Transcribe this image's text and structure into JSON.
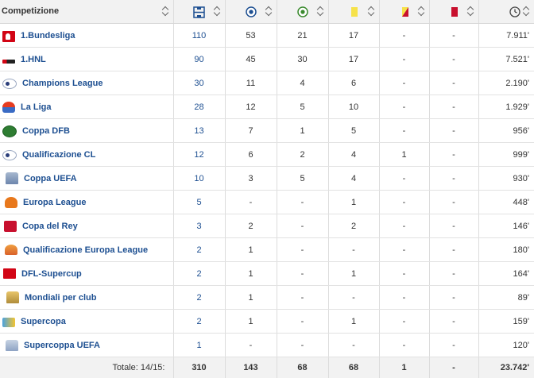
{
  "header": {
    "competition_label": "Competizione",
    "columns": [
      {
        "icon": "appearances-icon"
      },
      {
        "icon": "goals-icon"
      },
      {
        "icon": "assists-icon"
      },
      {
        "icon": "yellow-card-icon"
      },
      {
        "icon": "second-yellow-card-icon"
      },
      {
        "icon": "red-card-icon"
      },
      {
        "icon": "clock-icon"
      }
    ]
  },
  "rows": [
    {
      "logo": "bundesliga-logo",
      "name": "1.Bundesliga",
      "app": "110",
      "goals": "53",
      "assists": "21",
      "yellow": "17",
      "yellowred": "-",
      "red": "-",
      "minutes": "7.911'"
    },
    {
      "logo": "hnl-logo",
      "name": "1.HNL",
      "app": "90",
      "goals": "45",
      "assists": "30",
      "yellow": "17",
      "yellowred": "-",
      "red": "-",
      "minutes": "7.521'"
    },
    {
      "logo": "champions-league-logo",
      "name": "Champions League",
      "app": "30",
      "goals": "11",
      "assists": "4",
      "yellow": "6",
      "yellowred": "-",
      "red": "-",
      "minutes": "2.190'"
    },
    {
      "logo": "la-liga-logo",
      "name": "La Liga",
      "app": "28",
      "goals": "12",
      "assists": "5",
      "yellow": "10",
      "yellowred": "-",
      "red": "-",
      "minutes": "1.929'"
    },
    {
      "logo": "coppa-dfb-logo",
      "name": "Coppa DFB",
      "app": "13",
      "goals": "7",
      "assists": "1",
      "yellow": "5",
      "yellowred": "-",
      "red": "-",
      "minutes": "956'"
    },
    {
      "logo": "qualificazione-cl-logo",
      "name": "Qualificazione CL",
      "app": "12",
      "goals": "6",
      "assists": "2",
      "yellow": "4",
      "yellowred": "1",
      "red": "-",
      "minutes": "999'"
    },
    {
      "logo": "coppa-uefa-logo",
      "name": "Coppa UEFA",
      "app": "10",
      "goals": "3",
      "assists": "5",
      "yellow": "4",
      "yellowred": "-",
      "red": "-",
      "minutes": "930'"
    },
    {
      "logo": "europa-league-logo",
      "name": "Europa League",
      "app": "5",
      "goals": "-",
      "assists": "-",
      "yellow": "1",
      "yellowred": "-",
      "red": "-",
      "minutes": "448'"
    },
    {
      "logo": "copa-del-rey-logo",
      "name": "Copa del Rey",
      "app": "3",
      "goals": "2",
      "assists": "-",
      "yellow": "2",
      "yellowred": "-",
      "red": "-",
      "minutes": "146'"
    },
    {
      "logo": "qualificazione-europa-league-logo",
      "name": "Qualificazione Europa League",
      "app": "2",
      "goals": "1",
      "assists": "-",
      "yellow": "-",
      "yellowred": "-",
      "red": "-",
      "minutes": "180'"
    },
    {
      "logo": "dfl-supercup-logo",
      "name": "DFL-Supercup",
      "app": "2",
      "goals": "1",
      "assists": "-",
      "yellow": "1",
      "yellowred": "-",
      "red": "-",
      "minutes": "164'"
    },
    {
      "logo": "mondiali-per-club-logo",
      "name": "Mondiali per club",
      "app": "2",
      "goals": "1",
      "assists": "-",
      "yellow": "-",
      "yellowred": "-",
      "red": "-",
      "minutes": "89'"
    },
    {
      "logo": "supercopa-logo",
      "name": "Supercopa",
      "app": "2",
      "goals": "1",
      "assists": "-",
      "yellow": "1",
      "yellowred": "-",
      "red": "-",
      "minutes": "159'"
    },
    {
      "logo": "supercoppa-uefa-logo",
      "name": "Supercoppa UEFA",
      "app": "1",
      "goals": "-",
      "assists": "-",
      "yellow": "-",
      "yellowred": "-",
      "red": "-",
      "minutes": "120'"
    }
  ],
  "totals": {
    "label": "Totale: 14/15:",
    "app": "310",
    "goals": "143",
    "assists": "68",
    "yellow": "68",
    "yellowred": "1",
    "red": "-",
    "minutes": "23.742'"
  },
  "colors": {
    "link": "#1d4f91",
    "header_bg": "#f2f2f2",
    "yellow_card": "#f6e24a",
    "red_card": "#c8102e",
    "goal_icon": "#1d4f91",
    "assist_icon": "#3a8a2e"
  }
}
